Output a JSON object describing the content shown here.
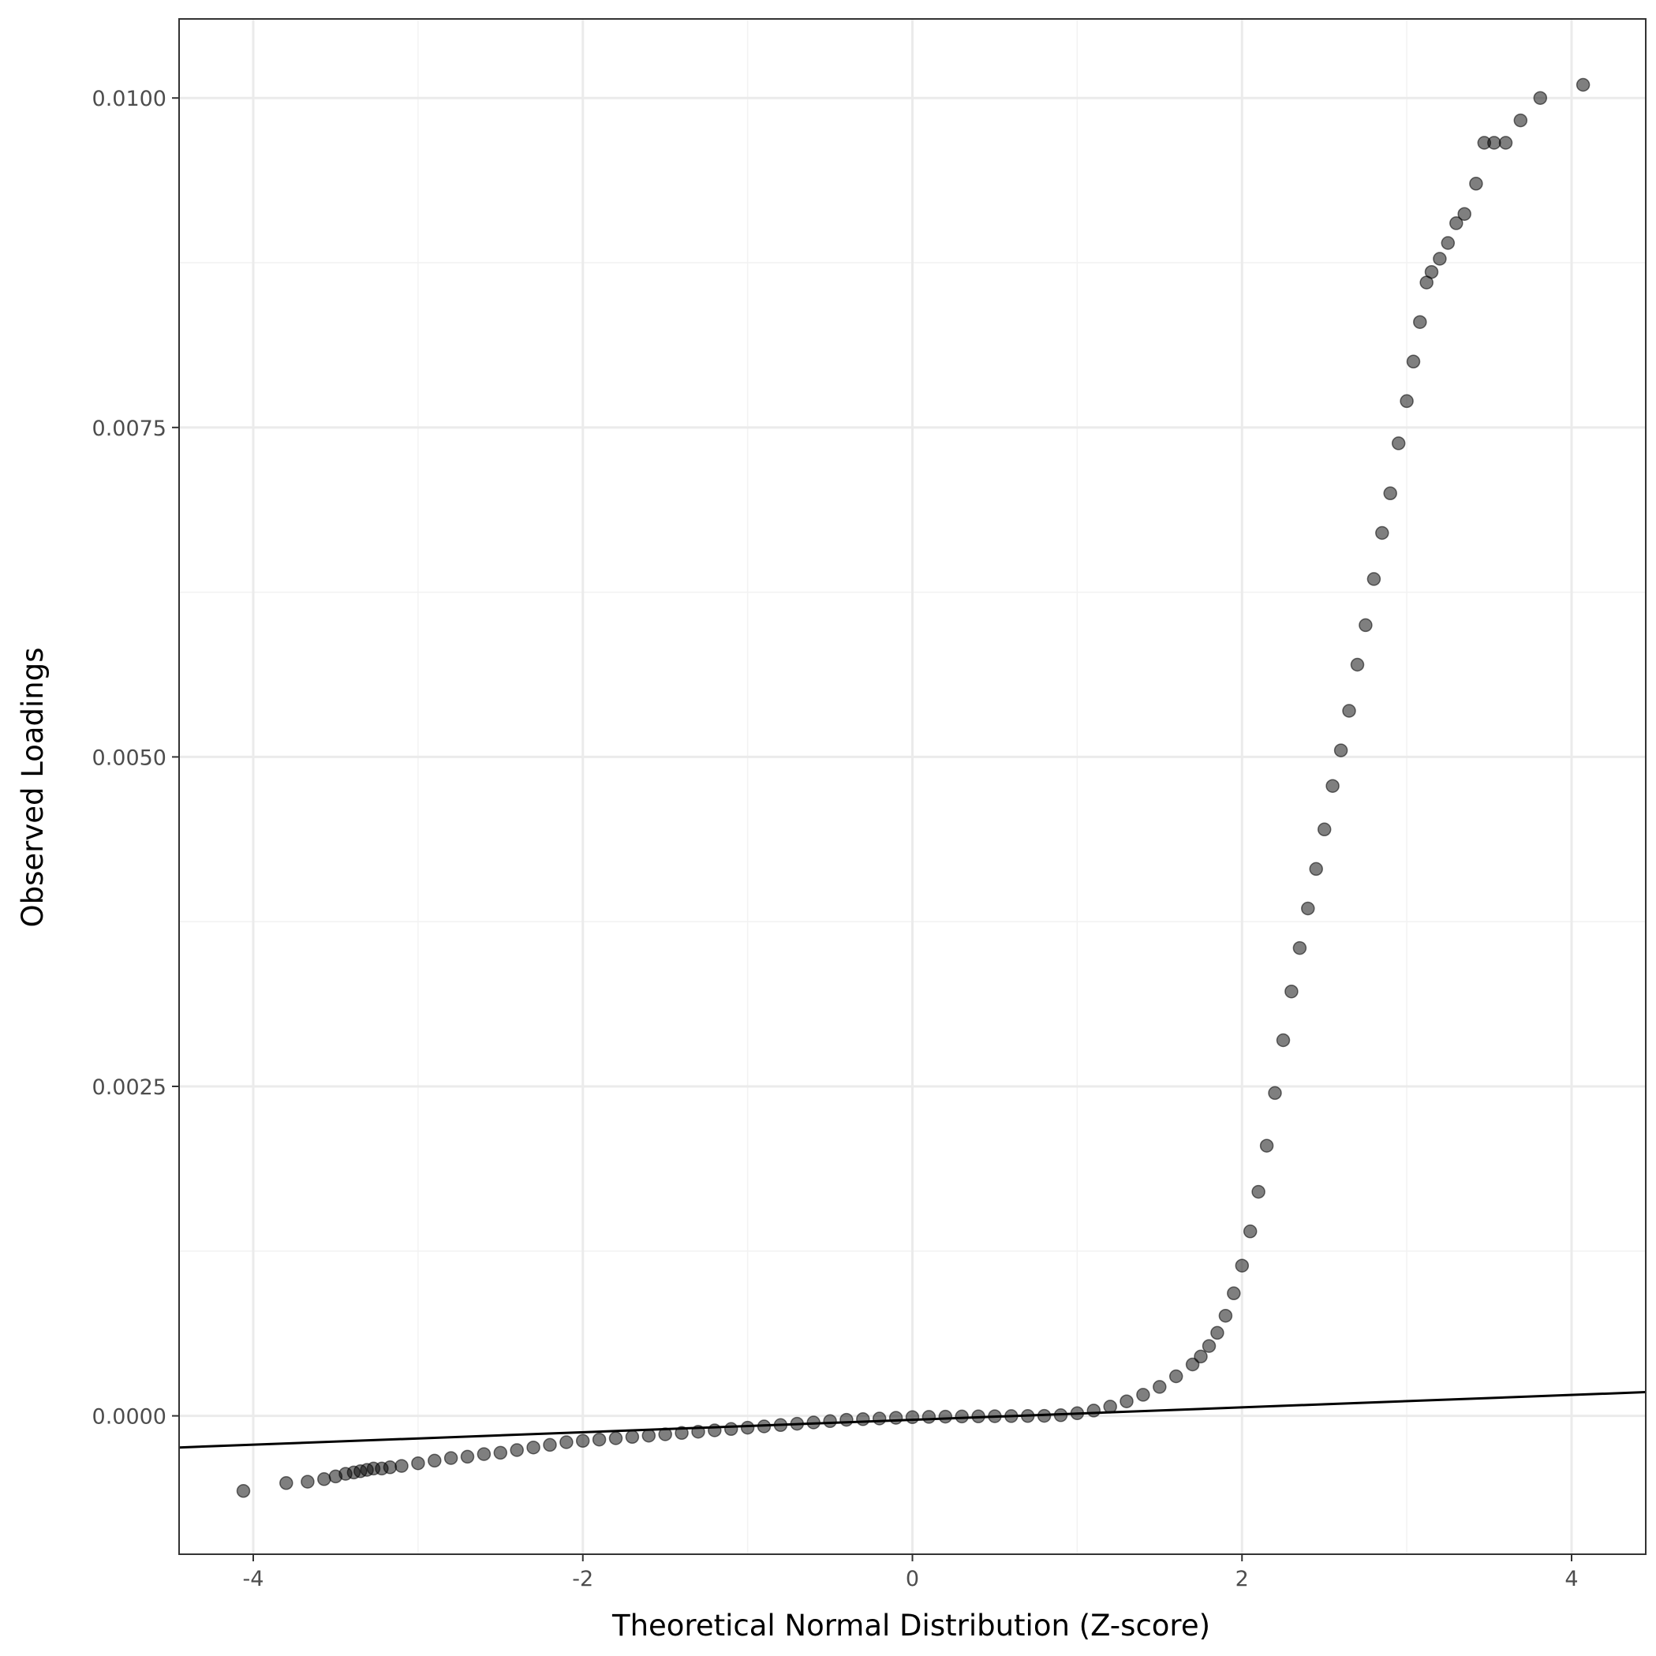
{
  "chart_data": {
    "type": "scatter",
    "title": "",
    "xlabel": "Theoretical Normal Distribution (Z-score)",
    "ylabel": "Observed Loadings",
    "xlim": [
      -4.45,
      4.45
    ],
    "ylim": [
      -0.00105,
      0.0106
    ],
    "x_ticks": [
      -4,
      -2,
      0,
      2,
      4
    ],
    "x_tick_labels": [
      "-4",
      "-2",
      "0",
      "2",
      "4"
    ],
    "y_ticks": [
      0.0,
      0.0025,
      0.005,
      0.0075,
      0.01
    ],
    "y_tick_labels": [
      "0.0000",
      "0.0025",
      "0.0050",
      "0.0075",
      "0.0100"
    ],
    "grid": true,
    "legend": "none",
    "colors": {
      "point": "#000000",
      "point_opacity": 0.5,
      "reference_line": "#000000",
      "panel_border": "#333333",
      "grid_major": "#ebebeb",
      "grid_minor": "#f2f2f2"
    },
    "series": [
      {
        "points": [
          [
            -4.06,
            -0.00057
          ],
          [
            -3.8,
            -0.00051
          ],
          [
            -3.67,
            -0.0005
          ],
          [
            -3.57,
            -0.00048
          ],
          [
            -3.5,
            -0.00046
          ],
          [
            -3.44,
            -0.00044
          ],
          [
            -3.39,
            -0.00043
          ],
          [
            -3.35,
            -0.00042
          ],
          [
            -3.31,
            -0.00041
          ],
          [
            -3.27,
            -0.0004
          ],
          [
            -3.22,
            -0.0004
          ],
          [
            -3.17,
            -0.00039
          ],
          [
            -3.1,
            -0.00038
          ],
          [
            -3.0,
            -0.00036
          ],
          [
            -2.9,
            -0.00034
          ],
          [
            -2.8,
            -0.00032
          ],
          [
            -2.7,
            -0.00031
          ],
          [
            -2.6,
            -0.00029
          ],
          [
            -2.5,
            -0.00028
          ],
          [
            -2.4,
            -0.00026
          ],
          [
            -2.3,
            -0.00024
          ],
          [
            -2.2,
            -0.00022
          ],
          [
            -2.1,
            -0.0002
          ],
          [
            -2.0,
            -0.00019
          ],
          [
            -1.9,
            -0.00018
          ],
          [
            -1.8,
            -0.00017
          ],
          [
            -1.7,
            -0.00016
          ],
          [
            -1.6,
            -0.00015
          ],
          [
            -1.5,
            -0.00014
          ],
          [
            -1.4,
            -0.00013
          ],
          [
            -1.3,
            -0.00012
          ],
          [
            -1.2,
            -0.00011
          ],
          [
            -1.1,
            -0.0001
          ],
          [
            -1.0,
            -9e-05
          ],
          [
            -0.9,
            -8e-05
          ],
          [
            -0.8,
            -7e-05
          ],
          [
            -0.7,
            -6e-05
          ],
          [
            -0.6,
            -5e-05
          ],
          [
            -0.5,
            -4e-05
          ],
          [
            -0.4,
            -3e-05
          ],
          [
            -0.3,
            -2.5e-05
          ],
          [
            -0.2,
            -2e-05
          ],
          [
            -0.1,
            -1.5e-05
          ],
          [
            0.0,
            -1e-05
          ],
          [
            0.1,
            -8e-06
          ],
          [
            0.2,
            -6e-06
          ],
          [
            0.3,
            -5e-06
          ],
          [
            0.4,
            -4e-06
          ],
          [
            0.5,
            -3e-06
          ],
          [
            0.6,
            -2e-06
          ],
          [
            0.7,
            -1e-06
          ],
          [
            0.8,
            0.0
          ],
          [
            0.9,
            5e-06
          ],
          [
            1.0,
            2e-05
          ],
          [
            1.1,
            4e-05
          ],
          [
            1.2,
            7e-05
          ],
          [
            1.3,
            0.00011
          ],
          [
            1.4,
            0.00016
          ],
          [
            1.5,
            0.00022
          ],
          [
            1.6,
            0.0003
          ],
          [
            1.7,
            0.00039
          ],
          [
            1.75,
            0.00045
          ],
          [
            1.8,
            0.00053
          ],
          [
            1.85,
            0.00063
          ],
          [
            1.9,
            0.00076
          ],
          [
            1.95,
            0.00093
          ],
          [
            2.0,
            0.00114
          ],
          [
            2.05,
            0.0014
          ],
          [
            2.1,
            0.0017
          ],
          [
            2.15,
            0.00205
          ],
          [
            2.2,
            0.00245
          ],
          [
            2.25,
            0.00285
          ],
          [
            2.3,
            0.00322
          ],
          [
            2.35,
            0.00355
          ],
          [
            2.4,
            0.00385
          ],
          [
            2.45,
            0.00415
          ],
          [
            2.5,
            0.00445
          ],
          [
            2.55,
            0.00478
          ],
          [
            2.6,
            0.00505
          ],
          [
            2.65,
            0.00535
          ],
          [
            2.7,
            0.0057
          ],
          [
            2.75,
            0.006
          ],
          [
            2.8,
            0.00635
          ],
          [
            2.85,
            0.0067
          ],
          [
            2.9,
            0.007
          ],
          [
            2.95,
            0.00738
          ],
          [
            3.0,
            0.0077
          ],
          [
            3.04,
            0.008
          ],
          [
            3.08,
            0.0083
          ],
          [
            3.12,
            0.0086
          ],
          [
            3.15,
            0.00868
          ],
          [
            3.2,
            0.00878
          ],
          [
            3.25,
            0.0089
          ],
          [
            3.3,
            0.00905
          ],
          [
            3.35,
            0.00912
          ],
          [
            3.42,
            0.00935
          ],
          [
            3.47,
            0.00966
          ],
          [
            3.53,
            0.00966
          ],
          [
            3.6,
            0.00966
          ],
          [
            3.69,
            0.00983
          ],
          [
            3.81,
            0.01
          ],
          [
            4.07,
            0.0101
          ]
        ]
      }
    ],
    "reference_line": {
      "x": [
        -4.45,
        4.45
      ],
      "y": [
        -0.00024,
        0.00018
      ]
    }
  }
}
